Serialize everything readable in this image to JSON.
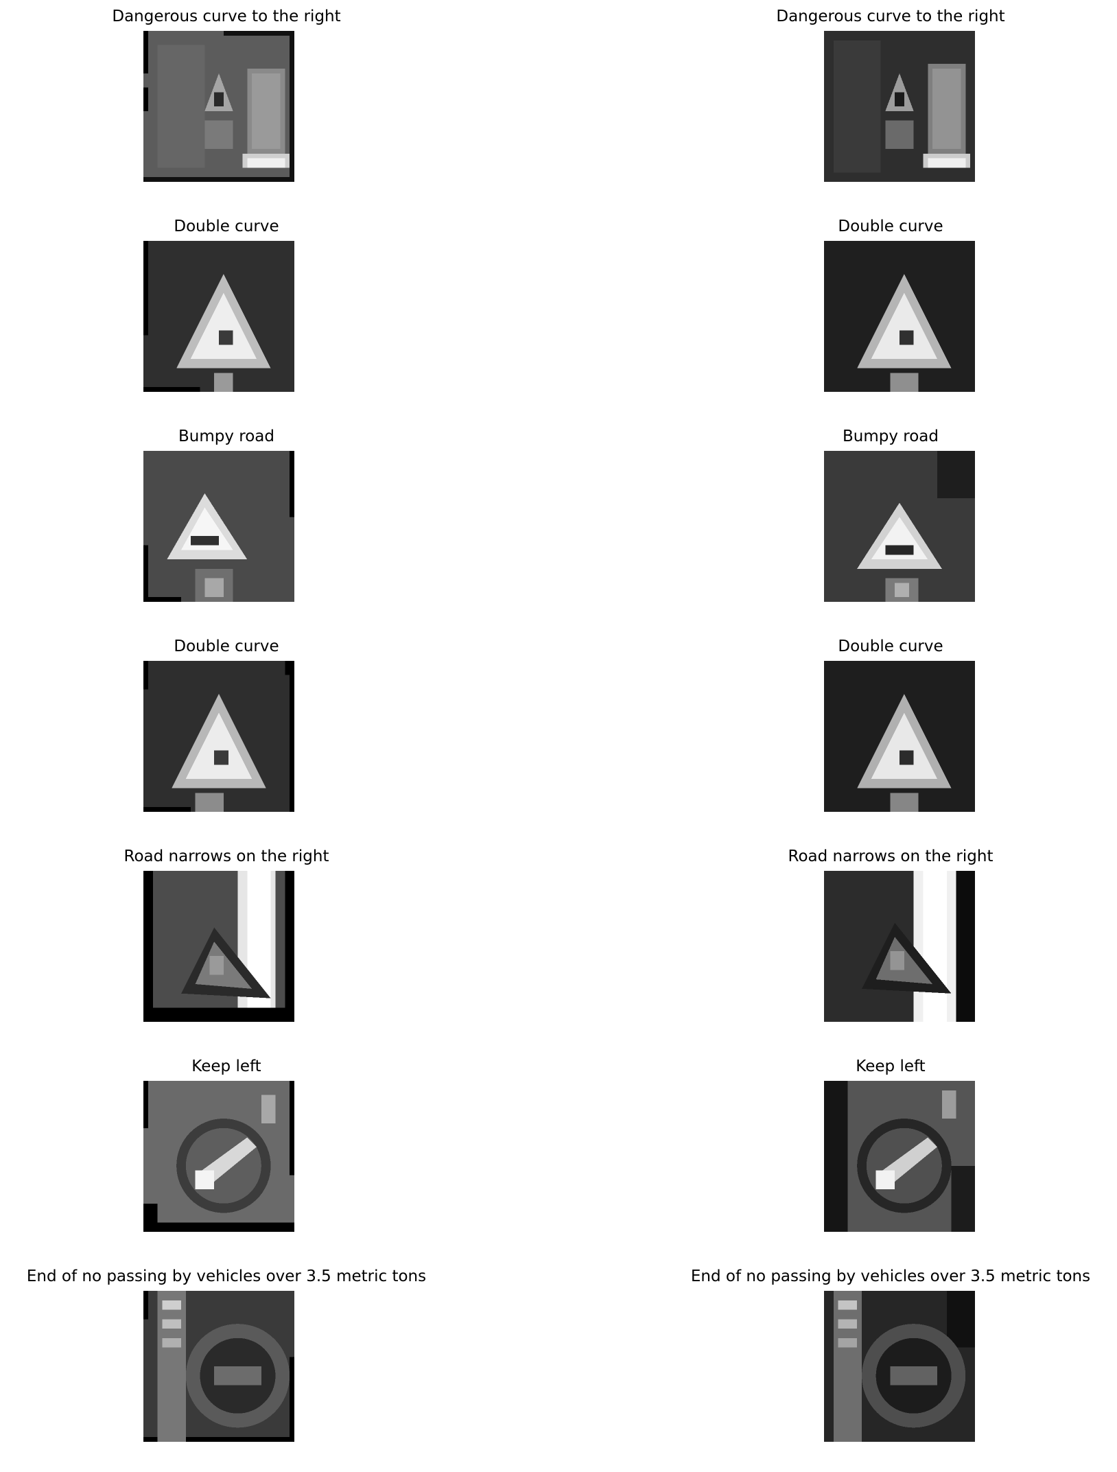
{
  "figure": {
    "rows": [
      {
        "left": {
          "title": "Dangerous curve to the right",
          "image_icon": "grayscale-traffic-sign-icon"
        },
        "right": {
          "title": "Dangerous curve to the right",
          "image_icon": "grayscale-traffic-sign-icon"
        }
      },
      {
        "left": {
          "title": "Double curve",
          "image_icon": "grayscale-triangle-sign-icon"
        },
        "right": {
          "title": "Double curve",
          "image_icon": "grayscale-triangle-sign-icon"
        }
      },
      {
        "left": {
          "title": "Bumpy road",
          "image_icon": "grayscale-triangle-sign-icon"
        },
        "right": {
          "title": "Bumpy road",
          "image_icon": "grayscale-triangle-sign-icon"
        }
      },
      {
        "left": {
          "title": "Double curve",
          "image_icon": "grayscale-triangle-sign-icon"
        },
        "right": {
          "title": "Double curve",
          "image_icon": "grayscale-triangle-sign-icon"
        }
      },
      {
        "left": {
          "title": "Road narrows on the right",
          "image_icon": "grayscale-triangle-sign-icon"
        },
        "right": {
          "title": "Road narrows on the right",
          "image_icon": "grayscale-triangle-sign-icon"
        }
      },
      {
        "left": {
          "title": "Keep left",
          "image_icon": "grayscale-round-sign-icon"
        },
        "right": {
          "title": "Keep left",
          "image_icon": "grayscale-round-sign-icon"
        }
      },
      {
        "left": {
          "title": "End of no passing by vehicles over 3.5 metric tons",
          "image_icon": "grayscale-round-sign-icon"
        },
        "right": {
          "title": "End of no passing by vehicles over 3.5 metric tons",
          "image_icon": "grayscale-round-sign-icon"
        }
      }
    ]
  }
}
